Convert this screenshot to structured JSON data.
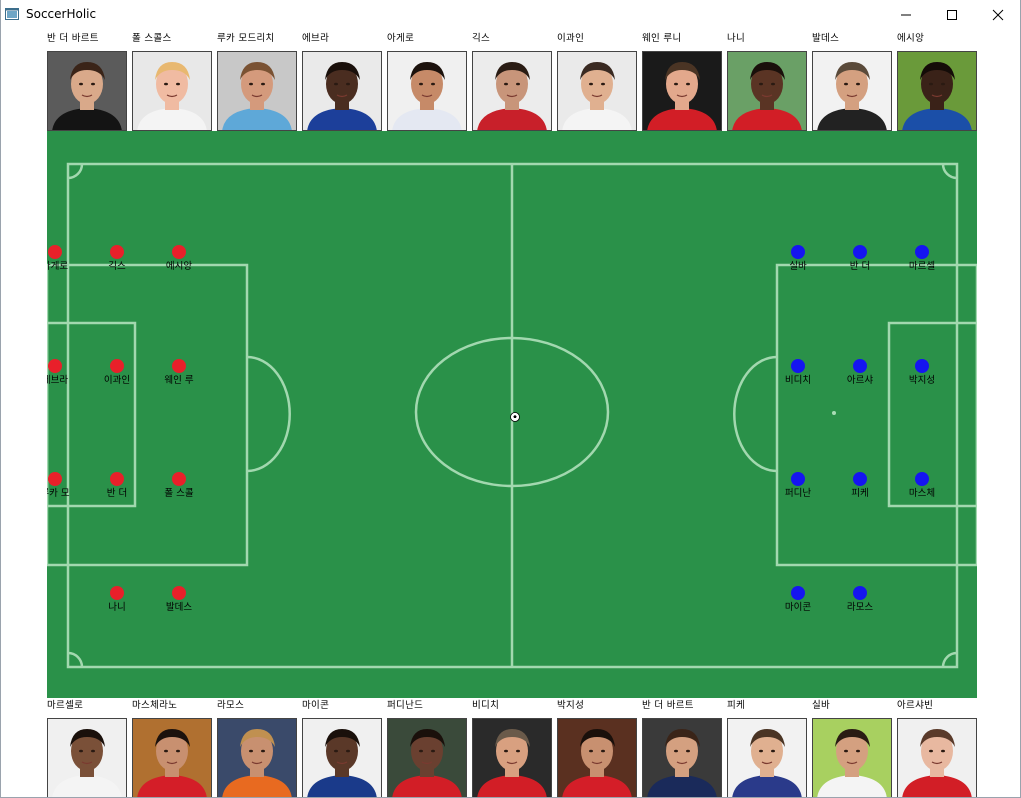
{
  "window": {
    "title": "SoccerHolic",
    "controls": [
      "minimize",
      "maximize",
      "close"
    ]
  },
  "colors": {
    "field": "#2a9149",
    "line": "#a9dcb5",
    "red_team": "#e8202a",
    "blue_team": "#1515f0"
  },
  "top_players": [
    {
      "name": "반 더 바르트",
      "shirt": "#141414",
      "skin": "#d9a98a",
      "hair": "#3a2418",
      "bg": "#5b5b5b"
    },
    {
      "name": "폴 스콜스",
      "shirt": "#f4f4f4",
      "skin": "#f0bba2",
      "hair": "#e8b870",
      "bg": "#e8e8e8"
    },
    {
      "name": "루카 모드리치",
      "shirt": "#5ea8d8",
      "skin": "#d49a7c",
      "hair": "#7a5233",
      "bg": "#c8c8c8"
    },
    {
      "name": "에브라",
      "shirt": "#1c3f9a",
      "skin": "#4a2d20",
      "hair": "#1a100b",
      "bg": "#eaeaea"
    },
    {
      "name": "아게로",
      "shirt": "#e4e8f2",
      "skin": "#c68a68",
      "hair": "#1c120d",
      "bg": "#f0f0f0"
    },
    {
      "name": "긱스",
      "shirt": "#c8202a",
      "skin": "#c8957a",
      "hair": "#2a1c14",
      "bg": "#ececec"
    },
    {
      "name": "이과인",
      "shirt": "#f4f4f4",
      "skin": "#e0b090",
      "hair": "#3a2a22",
      "bg": "#eaeaea"
    },
    {
      "name": "웨인 루니",
      "shirt": "#d21e26",
      "skin": "#e3a88c",
      "hair": "#4a3424",
      "bg": "#1a1a1a"
    },
    {
      "name": "나니",
      "shirt": "#d21e26",
      "skin": "#5a3424",
      "hair": "#1a100b",
      "bg": "#6aa066"
    },
    {
      "name": "발데스",
      "shirt": "#222222",
      "skin": "#d4a080",
      "hair": "#5a4a3a",
      "bg": "#f2f2f2"
    },
    {
      "name": "에시앙",
      "shirt": "#1b4fa8",
      "skin": "#3a2218",
      "hair": "#140c08",
      "bg": "#6a9a3a"
    }
  ],
  "bottom_players": [
    {
      "name": "마르셀로",
      "shirt": "#f4f4f4",
      "skin": "#7a5038",
      "hair": "#1a100b",
      "bg": "#f0f0f0"
    },
    {
      "name": "마스체라노",
      "shirt": "#d41e28",
      "skin": "#c89070",
      "hair": "#1c120d",
      "bg": "#b07030"
    },
    {
      "name": "라모스",
      "shirt": "#e86a20",
      "skin": "#c89070",
      "hair": "#c09050",
      "bg": "#3a4a6a"
    },
    {
      "name": "마이콘",
      "shirt": "#1a3a8a",
      "skin": "#5a3828",
      "hair": "#1a100b",
      "bg": "#f0f0f0"
    },
    {
      "name": "퍼디난드",
      "shirt": "#d21e26",
      "skin": "#6a4030",
      "hair": "#1a100b",
      "bg": "#3a4a3a"
    },
    {
      "name": "비디치",
      "shirt": "#d21e26",
      "skin": "#d8a080",
      "hair": "#6a5a4a",
      "bg": "#2a2a2a"
    },
    {
      "name": "박지성",
      "shirt": "#d41e28",
      "skin": "#c89070",
      "hair": "#1a100b",
      "bg": "#5a3020"
    },
    {
      "name": "반 더 바르트",
      "shirt": "#1a2a5a",
      "skin": "#d4a080",
      "hair": "#3a2418",
      "bg": "#3a3a3a"
    },
    {
      "name": "피케",
      "shirt": "#2a3a8a",
      "skin": "#e0b090",
      "hair": "#4a3424",
      "bg": "#f2f2f2"
    },
    {
      "name": "실바",
      "shirt": "#f4f4f4",
      "skin": "#d4a080",
      "hair": "#2a1c14",
      "bg": "#a8d060"
    },
    {
      "name": "아르샤빈",
      "shirt": "#d21e26",
      "skin": "#e8b8a0",
      "hair": "#5a3a2a",
      "bg": "#f0f0f0"
    }
  ],
  "red_team": [
    {
      "label": "아게로"
    },
    {
      "label": "긱스"
    },
    {
      "label": "에시앙"
    },
    {
      "label": "에브라"
    },
    {
      "label": "이과인"
    },
    {
      "label": "웨인 루"
    },
    {
      "label": "루카 모"
    },
    {
      "label": "반 더"
    },
    {
      "label": "폴 스콜"
    },
    {
      "label": "나니"
    },
    {
      "label": "발데스"
    }
  ],
  "blue_team": [
    {
      "label": "실바"
    },
    {
      "label": "반 더"
    },
    {
      "label": "마르셀"
    },
    {
      "label": "비디치"
    },
    {
      "label": "아르샤"
    },
    {
      "label": "박지성"
    },
    {
      "label": "퍼디난"
    },
    {
      "label": "피케"
    },
    {
      "label": "마스체"
    },
    {
      "label": "마이콘"
    },
    {
      "label": "라모스"
    }
  ]
}
